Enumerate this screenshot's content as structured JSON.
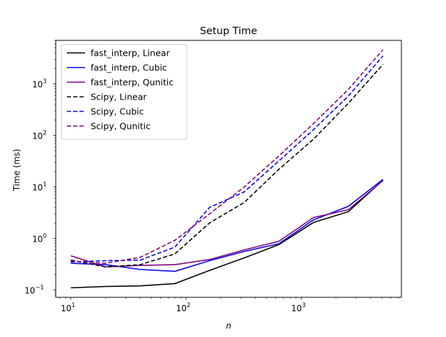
{
  "chart_data": {
    "type": "line",
    "title": "Setup Time",
    "xlabel": "n",
    "ylabel": "Time (ms)",
    "xscale": "log",
    "yscale": "log",
    "xlim": [
      7.4,
      7400
    ],
    "ylim": [
      0.072,
      7000
    ],
    "x_ticks": [
      {
        "value": 10,
        "base": "10",
        "exp": "1"
      },
      {
        "value": 100,
        "base": "10",
        "exp": "2"
      },
      {
        "value": 1000,
        "base": "10",
        "exp": "3"
      }
    ],
    "y_ticks": [
      {
        "value": 0.1,
        "base": "10",
        "exp": "−1"
      },
      {
        "value": 1,
        "base": "10",
        "exp": "0"
      },
      {
        "value": 10,
        "base": "10",
        "exp": "1"
      },
      {
        "value": 100,
        "base": "10",
        "exp": "2"
      },
      {
        "value": 1000,
        "base": "10",
        "exp": "3"
      }
    ],
    "grid": false,
    "legend_position": "top-left",
    "x": [
      10,
      20,
      40,
      80,
      160,
      320,
      640,
      1280,
      2560,
      5120
    ],
    "series": [
      {
        "name": "fast_interp, Linear",
        "color": "#000000",
        "dash": "solid",
        "values": [
          0.11,
          0.117,
          0.12,
          0.133,
          0.24,
          0.42,
          0.76,
          2.05,
          3.3,
          13.5
        ]
      },
      {
        "name": "fast_interp, Cubic",
        "color": "#0000ff",
        "dash": "solid",
        "values": [
          0.33,
          0.31,
          0.25,
          0.23,
          0.37,
          0.56,
          0.79,
          2.3,
          4.2,
          14
        ]
      },
      {
        "name": "fast_interp, Qunitic",
        "color": "#800080",
        "dash": "solid",
        "values": [
          0.46,
          0.28,
          0.3,
          0.31,
          0.39,
          0.6,
          0.88,
          2.55,
          3.6,
          13.3
        ]
      },
      {
        "name": "Scipy, Linear",
        "color": "#000000",
        "dash": "dashed",
        "values": [
          0.38,
          0.28,
          0.31,
          0.5,
          2.0,
          5.0,
          22,
          85,
          420,
          2400
        ]
      },
      {
        "name": "Scipy, Cubic",
        "color": "#0000ff",
        "dash": "dashed",
        "values": [
          0.35,
          0.37,
          0.38,
          0.68,
          4.0,
          8.0,
          32,
          130,
          580,
          3500
        ]
      },
      {
        "name": "Scipy, Qunitic",
        "color": "#800080",
        "dash": "dashed",
        "values": [
          0.36,
          0.33,
          0.43,
          0.92,
          3.0,
          10.0,
          40,
          170,
          780,
          4600
        ]
      }
    ]
  }
}
